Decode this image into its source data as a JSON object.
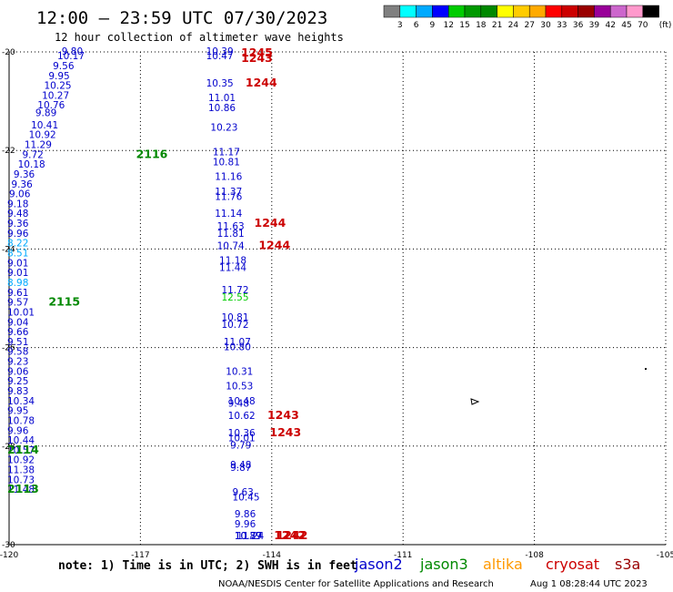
{
  "title": "12:00 — 23:59 UTC 07/30/2023",
  "subtitle": "12 hour collection of altimeter wave heights",
  "legend": {
    "unit": "(ft)",
    "labels": [
      "3",
      "6",
      "9",
      "12",
      "15",
      "18",
      "21",
      "24",
      "27",
      "30",
      "33",
      "36",
      "39",
      "42",
      "45",
      "70"
    ],
    "colors": [
      "#808080",
      "#00ffff",
      "#00aaff",
      "#0000ff",
      "#00cc00",
      "#009900",
      "#008800",
      "#ffff00",
      "#ffcc00",
      "#ffaa00",
      "#ff0000",
      "#cc0000",
      "#990000",
      "#990099",
      "#cc66cc",
      "#ff99cc",
      "#000000"
    ]
  },
  "axes": {
    "lat_labels": [
      "-20",
      "-22",
      "-24",
      "-26",
      "-28",
      "-30"
    ],
    "lon_labels": [
      "-120",
      "-117",
      "-114",
      "-111",
      "-108",
      "-105"
    ]
  },
  "satellites": [
    {
      "name": "jason2",
      "color": "#0000cc"
    },
    {
      "name": "jason3",
      "color": "#008800"
    },
    {
      "name": "altika",
      "color": "#ff9900"
    },
    {
      "name": "cryosat",
      "color": "#cc0000"
    },
    {
      "name": "s3a",
      "color": "#990000"
    }
  ],
  "footer": {
    "note": "note: 1) Time is in UTC; 2) SWH is in feet",
    "credit": "NOAA/NESDIS Center for Satellite Applications and Research",
    "timestamp": "Aug  1 08:28:44 UTC 2023"
  },
  "chart_data": {
    "type": "scatter",
    "x_range": [
      -120,
      -105
    ],
    "y_range": [
      -30,
      -20
    ],
    "wave_heights": [
      {
        "lon": -118.8,
        "lat": -20.0,
        "text": "9.80",
        "color": "#0000cc"
      },
      {
        "lon": -118.9,
        "lat": -20.15,
        "text": "10.17",
        "color": "#0000cc"
      },
      {
        "lon": -119.0,
        "lat": -20.35,
        "text": "9.56",
        "color": "#0000cc"
      },
      {
        "lon": -119.1,
        "lat": -20.55,
        "text": "9.95",
        "color": "#0000cc"
      },
      {
        "lon": -119.2,
        "lat": -20.75,
        "text": "10.25",
        "color": "#0000cc"
      },
      {
        "lon": -119.25,
        "lat": -20.95,
        "text": "10.27",
        "color": "#0000cc"
      },
      {
        "lon": -119.35,
        "lat": -21.15,
        "text": "10.76",
        "color": "#0000cc"
      },
      {
        "lon": -119.4,
        "lat": -21.3,
        "text": "9.89",
        "color": "#0000cc"
      },
      {
        "lon": -119.5,
        "lat": -21.55,
        "text": "10.41",
        "color": "#0000cc"
      },
      {
        "lon": -119.55,
        "lat": -21.75,
        "text": "10.92",
        "color": "#0000cc"
      },
      {
        "lon": -119.65,
        "lat": -21.95,
        "text": "11.29",
        "color": "#0000cc"
      },
      {
        "lon": -119.7,
        "lat": -22.15,
        "text": "9.72",
        "color": "#0000cc"
      },
      {
        "lon": -119.8,
        "lat": -22.35,
        "text": "10.18",
        "color": "#0000cc"
      },
      {
        "lon": -119.9,
        "lat": -22.55,
        "text": "9.36",
        "color": "#0000cc"
      },
      {
        "lon": -119.95,
        "lat": -22.75,
        "text": "9.36",
        "color": "#0000cc"
      },
      {
        "lon": -120.0,
        "lat": -22.95,
        "text": "9.06",
        "color": "#0000cc"
      },
      {
        "lon": -120.1,
        "lat": -23.15,
        "text": "9.18",
        "color": "#0000cc"
      },
      {
        "lon": -120.15,
        "lat": -23.35,
        "text": "9.48",
        "color": "#0000cc"
      },
      {
        "lon": -120.25,
        "lat": -23.55,
        "text": "9.36",
        "color": "#0000cc"
      },
      {
        "lon": -120.3,
        "lat": -23.75,
        "text": "9.96",
        "color": "#0000cc"
      },
      {
        "lon": -120.4,
        "lat": -23.95,
        "text": "8.22",
        "color": "#00aaff"
      },
      {
        "lon": -120.45,
        "lat": -24.15,
        "text": "8.51",
        "color": "#00aaff"
      },
      {
        "lon": -120.55,
        "lat": -24.35,
        "text": "9.01",
        "color": "#0000cc"
      },
      {
        "lon": -120.6,
        "lat": -24.55,
        "text": "9.01",
        "color": "#0000cc"
      },
      {
        "lon": -120.7,
        "lat": -24.75,
        "text": "8.98",
        "color": "#00aaff"
      },
      {
        "lon": -120.75,
        "lat": -24.95,
        "text": "9.61",
        "color": "#0000cc"
      },
      {
        "lon": -120.85,
        "lat": -25.15,
        "text": "9.57",
        "color": "#0000cc"
      },
      {
        "lon": -120.9,
        "lat": -25.35,
        "text": "10.01",
        "color": "#0000cc"
      },
      {
        "lon": -121.0,
        "lat": -25.55,
        "text": "9.04",
        "color": "#0000cc"
      },
      {
        "lon": -121.05,
        "lat": -25.75,
        "text": "9.66",
        "color": "#0000cc"
      },
      {
        "lon": -121.15,
        "lat": -25.95,
        "text": "9.51",
        "color": "#0000cc"
      },
      {
        "lon": -121.2,
        "lat": -26.15,
        "text": "9.58",
        "color": "#0000cc"
      },
      {
        "lon": -121.3,
        "lat": -26.35,
        "text": "9.23",
        "color": "#0000cc"
      },
      {
        "lon": -121.35,
        "lat": -26.55,
        "text": "9.06",
        "color": "#0000cc"
      },
      {
        "lon": -121.45,
        "lat": -26.75,
        "text": "9.25",
        "color": "#0000cc"
      },
      {
        "lon": -121.5,
        "lat": -26.95,
        "text": "9.83",
        "color": "#0000cc"
      },
      {
        "lon": -121.6,
        "lat": -27.15,
        "text": "10.34",
        "color": "#0000cc"
      },
      {
        "lon": -121.65,
        "lat": -27.35,
        "text": "9.95",
        "color": "#0000cc"
      },
      {
        "lon": -121.75,
        "lat": -27.55,
        "text": "10.78",
        "color": "#0000cc"
      },
      {
        "lon": -121.8,
        "lat": -27.75,
        "text": "9.96",
        "color": "#0000cc"
      },
      {
        "lon": -121.9,
        "lat": -27.95,
        "text": "10.44",
        "color": "#0000cc"
      },
      {
        "lon": -121.95,
        "lat": -28.15,
        "text": "10.57",
        "color": "#0000cc"
      },
      {
        "lon": -122.05,
        "lat": -28.35,
        "text": "10.92",
        "color": "#0000cc"
      },
      {
        "lon": -122.1,
        "lat": -28.55,
        "text": "11.38",
        "color": "#0000cc"
      },
      {
        "lon": -122.2,
        "lat": -28.75,
        "text": "10.73",
        "color": "#0000cc"
      },
      {
        "lon": -122.25,
        "lat": -28.95,
        "text": "11.48",
        "color": "#0000cc"
      },
      {
        "lon": -115.5,
        "lat": -20.0,
        "text": "10.39",
        "color": "#0000cc"
      },
      {
        "lon": -115.5,
        "lat": -20.15,
        "text": "10.47",
        "color": "#0000cc"
      },
      {
        "lon": -115.5,
        "lat": -20.7,
        "text": "10.35",
        "color": "#0000cc"
      },
      {
        "lon": -115.45,
        "lat": -21.0,
        "text": "11.01",
        "color": "#0000cc"
      },
      {
        "lon": -115.45,
        "lat": -21.2,
        "text": "10.86",
        "color": "#0000cc"
      },
      {
        "lon": -115.4,
        "lat": -21.6,
        "text": "10.23",
        "color": "#0000cc"
      },
      {
        "lon": -115.35,
        "lat": -22.1,
        "text": "11.17",
        "color": "#0000cc"
      },
      {
        "lon": -115.35,
        "lat": -22.3,
        "text": "10.81",
        "color": "#0000cc"
      },
      {
        "lon": -115.3,
        "lat": -22.6,
        "text": "11.16",
        "color": "#0000cc"
      },
      {
        "lon": -115.3,
        "lat": -22.9,
        "text": "11.37",
        "color": "#0000cc"
      },
      {
        "lon": -115.3,
        "lat": -23.0,
        "text": "11.76",
        "color": "#0000cc"
      },
      {
        "lon": -115.3,
        "lat": -23.35,
        "text": "11.14",
        "color": "#0000cc"
      },
      {
        "lon": -115.25,
        "lat": -23.6,
        "text": "11.63",
        "color": "#0000cc"
      },
      {
        "lon": -115.25,
        "lat": -23.75,
        "text": "11.81",
        "color": "#0000cc"
      },
      {
        "lon": -115.25,
        "lat": -24.0,
        "text": "10.74",
        "color": "#0000cc"
      },
      {
        "lon": -115.2,
        "lat": -24.3,
        "text": "11.18",
        "color": "#0000cc"
      },
      {
        "lon": -115.2,
        "lat": -24.45,
        "text": "11.44",
        "color": "#0000cc"
      },
      {
        "lon": -115.15,
        "lat": -24.9,
        "text": "11.72",
        "color": "#0000cc"
      },
      {
        "lon": -115.15,
        "lat": -25.05,
        "text": "12.55",
        "color": "#00cc00"
      },
      {
        "lon": -115.15,
        "lat": -25.45,
        "text": "10.81",
        "color": "#0000cc"
      },
      {
        "lon": -115.15,
        "lat": -25.6,
        "text": "10.72",
        "color": "#0000cc"
      },
      {
        "lon": -115.1,
        "lat": -25.95,
        "text": "11.07",
        "color": "#0000cc"
      },
      {
        "lon": -115.1,
        "lat": -26.05,
        "text": "10.80",
        "color": "#0000cc"
      },
      {
        "lon": -115.05,
        "lat": -26.55,
        "text": "10.31",
        "color": "#0000cc"
      },
      {
        "lon": -115.05,
        "lat": -26.85,
        "text": "10.53",
        "color": "#0000cc"
      },
      {
        "lon": -115.0,
        "lat": -27.15,
        "text": "10.48",
        "color": "#0000cc"
      },
      {
        "lon": -115.0,
        "lat": -27.2,
        "text": "9.48",
        "color": "#0000cc"
      },
      {
        "lon": -115.0,
        "lat": -27.45,
        "text": "10.62",
        "color": "#0000cc"
      },
      {
        "lon": -115.0,
        "lat": -27.8,
        "text": "10.36",
        "color": "#0000cc"
      },
      {
        "lon": -115.0,
        "lat": -27.9,
        "text": "10.01",
        "color": "#0000cc"
      },
      {
        "lon": -114.95,
        "lat": -28.05,
        "text": "9.79",
        "color": "#0000cc"
      },
      {
        "lon": -114.95,
        "lat": -28.45,
        "text": "9.48",
        "color": "#0000cc"
      },
      {
        "lon": -114.95,
        "lat": -28.5,
        "text": "9.87",
        "color": "#0000cc"
      },
      {
        "lon": -114.9,
        "lat": -29.0,
        "text": "9.63",
        "color": "#0000cc"
      },
      {
        "lon": -114.9,
        "lat": -29.1,
        "text": "10.45",
        "color": "#0000cc"
      },
      {
        "lon": -114.85,
        "lat": -29.45,
        "text": "9.86",
        "color": "#0000cc"
      },
      {
        "lon": -114.85,
        "lat": -29.65,
        "text": "9.96",
        "color": "#0000cc"
      },
      {
        "lon": -114.85,
        "lat": -30.1,
        "text": "10.89",
        "color": "#0000cc"
      },
      {
        "lon": -114.85,
        "lat": -30.15,
        "text": "10.77",
        "color": "#0000cc"
      },
      {
        "lon": -114.8,
        "lat": -30.35,
        "text": "11.24",
        "color": "#0000cc"
      }
    ],
    "pass_times": [
      {
        "lon": -114.7,
        "lat": -20.05,
        "text": "1245",
        "color": "#cc0000"
      },
      {
        "lon": -114.7,
        "lat": -20.2,
        "text": "1243",
        "color": "#cc0000"
      },
      {
        "lon": -114.6,
        "lat": -20.7,
        "text": "1244",
        "color": "#cc0000"
      },
      {
        "lon": -117.1,
        "lat": -22.15,
        "text": "2116",
        "color": "#008800"
      },
      {
        "lon": -114.4,
        "lat": -23.55,
        "text": "1244",
        "color": "#cc0000"
      },
      {
        "lon": -114.3,
        "lat": -24.0,
        "text": "1244",
        "color": "#cc0000"
      },
      {
        "lon": -119.1,
        "lat": -25.15,
        "text": "2115",
        "color": "#008800"
      },
      {
        "lon": -114.1,
        "lat": -27.45,
        "text": "1243",
        "color": "#cc0000"
      },
      {
        "lon": -114.05,
        "lat": -27.8,
        "text": "1243",
        "color": "#cc0000"
      },
      {
        "lon": -121.1,
        "lat": -28.15,
        "text": "2114",
        "color": "#008800"
      },
      {
        "lon": -121.5,
        "lat": -28.95,
        "text": "2113",
        "color": "#008800"
      },
      {
        "lon": -113.95,
        "lat": -30.1,
        "text": "1242",
        "color": "#cc0000"
      },
      {
        "lon": -113.9,
        "lat": -30.35,
        "text": "1242",
        "color": "#cc0000"
      }
    ]
  }
}
